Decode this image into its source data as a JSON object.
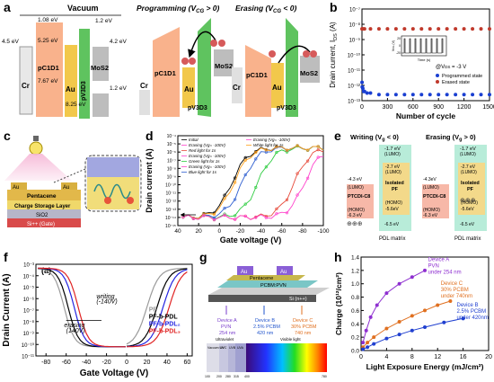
{
  "panel_labels": {
    "a": "a",
    "b": "b",
    "c": "c",
    "d": "d",
    "e": "e",
    "f": "f",
    "g": "g",
    "h": "h"
  },
  "panel_a": {
    "vacuum": {
      "title": "Vacuum",
      "levels": [
        "1.08 eV",
        "4.5 eV",
        "5.25 eV",
        "7.67 eV",
        "1.2 eV",
        "8.25 eV",
        "4.2 eV",
        "1.2 eV"
      ],
      "materials": [
        "Cr",
        "pC1D1",
        "Au",
        "pV3D3",
        "MoS2"
      ]
    },
    "programming": {
      "title": "Programming (V",
      "title_sub": "CG",
      "title_end": " > 0)",
      "materials": [
        "Cr",
        "pC1D1",
        "Au",
        "pV3D3",
        "MoS2"
      ]
    },
    "erasing": {
      "title": "Erasing (V",
      "title_sub": "CG",
      "title_end": " < 0)",
      "materials": [
        "Cr",
        "pC1D1",
        "Au",
        "pV3D3",
        "MoS2"
      ]
    }
  },
  "panel_c": {
    "labels": [
      "Au",
      "Au",
      "Pentacene",
      "Charge Storage Layer",
      "SiO2",
      "Si++ (Gate)"
    ]
  },
  "panel_e": {
    "writing_title": "Writing (V",
    "writing_sub": "g",
    "writing_end": " < 0)",
    "erasing_title": "Erasing (V",
    "erasing_sub": "g",
    "erasing_end": " > 0)",
    "left": {
      "top": "-1.7 eV",
      "lumo": "(LUMO)",
      "lumo2": "-2.7 eV",
      "lumo2b": "(LUMO)",
      "iso": "Isolated",
      "pf": "PF",
      "homo": "(HOMO)",
      "homoval": "-5.6eV",
      "ptcdi": "PTCDI-C8",
      "ptc_lumo": "-4.3 eV",
      "ptc_lumo_l": "(LUMO)",
      "ptc_homo": "(HOMO)",
      "ptc_homo_v": "-6.3 eV",
      "bottom": "-6.5 eV",
      "matrix": "PDL matrix"
    },
    "right": {
      "top": "-1.7 eV",
      "lumo": "(LUMO)",
      "lumo2": "-2.7 eV",
      "lumo2b": "(LUMO)",
      "iso": "Isolated",
      "pf": "PF",
      "homo": "(HOMO)",
      "homoval": "-5.6eV",
      "ptcdi": "PTCDI-C8",
      "ptc_lumo": "-4.3eV",
      "ptc_lumo_l": "(LUMO)",
      "ptc_homo": "(HOMO)",
      "ptc_homo_v": "-6.3 eV",
      "bottom": "-6.5 eV",
      "matrix": "PDL matrix"
    }
  },
  "panel_g": {
    "labels": [
      "Au",
      "Au",
      "Pentacene",
      "PCBM:PVN",
      "Si (n++)"
    ],
    "devices": [
      {
        "name": "Device A",
        "l1": "PVN",
        "l2": "254 nm"
      },
      {
        "name": "Device B",
        "l1": "2.5% PCBM",
        "l2": "420 nm"
      },
      {
        "name": "Device C",
        "l1": "30% PCBM",
        "l2": "740 nm"
      }
    ],
    "spectrum_labels": [
      "Ultraviolet",
      "Visible light"
    ],
    "spectrum_bands": [
      "Vacuum UV",
      "UVC",
      "UVB",
      "UVA"
    ],
    "spectrum_ticks": [
      "100",
      "200",
      "280",
      "315",
      "400",
      "780"
    ]
  },
  "chart_data": [
    {
      "panel": "b",
      "type": "scatter",
      "ylabel": "Drain current, I",
      "ylabel_sub": "DS",
      "ylabel_end": " (A)",
      "xlabel": "Number of cycle",
      "x_ticks": [
        "0",
        "300",
        "600",
        "900",
        "1200",
        "1500"
      ],
      "y_ticks": [
        "10⁻⁷",
        "10⁻⁸",
        "10⁻⁹",
        "10⁻¹⁰",
        "10⁻¹¹",
        "10⁻¹²",
        "10⁻¹³"
      ],
      "xlim": [
        0,
        1500
      ],
      "ylog": [
        -13,
        -7
      ],
      "annotation": "@V",
      "annotation_sub": "DS",
      "annotation_end": " = -3 V",
      "series": [
        {
          "name": "Programmed state",
          "color": "#1a3fd1",
          "x": [
            1,
            3,
            10,
            20,
            30,
            60,
            100,
            200,
            300,
            400,
            500,
            600,
            700,
            800,
            900,
            1000,
            1100,
            1200,
            1300,
            1400,
            1500
          ],
          "logy": [
            -11.8,
            -12.1,
            -12.2,
            -12.4,
            -12.4,
            -12.5,
            -12.5,
            -12.6,
            -12.6,
            -12.6,
            -12.6,
            -12.6,
            -12.6,
            -12.6,
            -12.6,
            -12.6,
            -12.6,
            -12.6,
            -12.6,
            -12.6,
            -12.6
          ]
        },
        {
          "name": "Erased state",
          "color": "#c0392b",
          "x": [
            1,
            3,
            10,
            30,
            100,
            200,
            300,
            400,
            500,
            600,
            700,
            800,
            900,
            1000,
            1100,
            1200,
            1300,
            1400,
            1500
          ],
          "logy": [
            -8.3,
            -8.3,
            -8.3,
            -8.3,
            -8.3,
            -8.3,
            -8.3,
            -8.3,
            -8.3,
            -8.3,
            -8.3,
            -8.3,
            -8.3,
            -8.3,
            -8.3,
            -8.3,
            -8.3,
            -8.3,
            -8.3
          ]
        }
      ],
      "inset": {
        "ylabel": "V",
        "ylabel_sub": "CG",
        "ylabel_end": " (V)",
        "xlabel": "Time (s)",
        "y_ticks": [
          "20",
          "0",
          "-20"
        ]
      }
    },
    {
      "panel": "d",
      "type": "line",
      "ylabel": "Drain current (A)",
      "xlabel": "Gate voltage (V)",
      "x_ticks": [
        "40",
        "20",
        "0",
        "-20",
        "-40",
        "-60",
        "-80",
        "-100"
      ],
      "y_ticks": [
        "10⁻⁴",
        "10⁻⁵",
        "10⁻⁶",
        "10⁻⁷",
        "10⁻⁸",
        "10⁻⁹",
        "10⁻¹⁰",
        "10⁻¹¹",
        "10⁻¹²",
        "10⁻¹³",
        "10⁻¹⁴",
        "10⁻¹⁵"
      ],
      "xlim": [
        40,
        -100
      ],
      "ylog": [
        -15,
        -4
      ],
      "legend": [
        "Initial",
        "Erasing (Vg= -100V)",
        "Red light for 1s",
        "Erasing (Vg= -100V)",
        "Green light for 1s",
        "Erasing (Vg= -100V)",
        "Blue light for 1s",
        "Erasing (Vg= -100V)",
        "White light for 1s"
      ],
      "series": [
        {
          "name": "Initial",
          "color": "#000000",
          "vth": 0
        },
        {
          "name": "Red light for 1s",
          "color": "#e74c3c",
          "vth": -60
        },
        {
          "name": "Green light for 1s",
          "color": "#2ecc40",
          "vth": -25
        },
        {
          "name": "Blue light for 1s",
          "color": "#2f5fd0",
          "vth": -10
        },
        {
          "name": "White light for 1s",
          "color": "#ff9f1a",
          "vth": -2
        },
        {
          "name": "Erasing (Vg= -100V)",
          "color": "#ff44cc",
          "vth": -70
        }
      ]
    },
    {
      "panel": "f",
      "type": "line",
      "subtitle": "(a)",
      "ylabel": "Drain Current (A)",
      "xlabel": "Gate Voltage (V)",
      "x_ticks": [
        "-80",
        "-60",
        "-40",
        "-20",
        "0",
        "20",
        "40",
        "60"
      ],
      "y_ticks": [
        "10⁻³",
        "10⁻⁴",
        "10⁻⁵",
        "10⁻⁶",
        "10⁻⁷",
        "10⁻⁸",
        "10⁻⁹",
        "10⁻¹⁰",
        "10⁻¹¹"
      ],
      "xlim": [
        -90,
        65
      ],
      "ylog": [
        -11,
        -4
      ],
      "annotations": [
        "writing",
        "(-140V)",
        "erasing",
        "(140V)"
      ],
      "series": [
        {
          "name": "PF",
          "color": "#9a9a9a"
        },
        {
          "name": "PF-b-PDL",
          "color": "#000000"
        },
        {
          "name": "PF-b-PDL2",
          "color": "#2424e0"
        },
        {
          "name": "PF-b-PDL3",
          "color": "#e02424"
        }
      ],
      "legend": [
        "PF",
        "PF-b-PDL",
        "PF-b-PDL₂",
        "PF-b-PDL₃"
      ]
    },
    {
      "panel": "h",
      "type": "line",
      "ylabel": "Charge (10¹²/cm²)",
      "xlabel": "Light Exposure Energy (mJ/cm²)",
      "x_ticks": [
        "0",
        "4",
        "8",
        "12",
        "16",
        "20"
      ],
      "y_ticks": [
        "0.0",
        "0.2",
        "0.4",
        "0.6",
        "0.8",
        "1.0",
        "1.2",
        "1.4"
      ],
      "xlim": [
        0,
        20
      ],
      "ylim": [
        0,
        1.4
      ],
      "series": [
        {
          "name": "Device A PVN under 254 nm",
          "color": "#8e2fd0",
          "x": [
            0.3,
            0.8,
            1.5,
            2.5,
            4,
            6,
            8,
            10
          ],
          "y": [
            0.12,
            0.3,
            0.5,
            0.68,
            0.86,
            1.0,
            1.1,
            1.2
          ]
        },
        {
          "name": "Device C 30% PCBM under 740nm",
          "color": "#e07020",
          "x": [
            0.3,
            1,
            2,
            4,
            6,
            8,
            10,
            12,
            14
          ],
          "y": [
            0.05,
            0.12,
            0.2,
            0.33,
            0.43,
            0.52,
            0.6,
            0.68,
            0.74
          ]
        },
        {
          "name": "Device B 2.5% PCBM under 420nm",
          "color": "#2040d0",
          "x": [
            0.3,
            1,
            2,
            4,
            6,
            8,
            10,
            13,
            16
          ],
          "y": [
            0.02,
            0.05,
            0.1,
            0.18,
            0.24,
            0.3,
            0.35,
            0.42,
            0.48
          ]
        }
      ],
      "labels": [
        {
          "l1": "Device A",
          "l2": "PVN",
          "l3": "under 254 nm",
          "color": "#8e2fd0"
        },
        {
          "l1": "Device C",
          "l2": "30% PCBM",
          "l3": "under 740nm",
          "color": "#e07020"
        },
        {
          "l1": "Device B",
          "l2": "2.5% PCBM",
          "l3": "under 420nm",
          "color": "#2040d0"
        }
      ]
    }
  ]
}
